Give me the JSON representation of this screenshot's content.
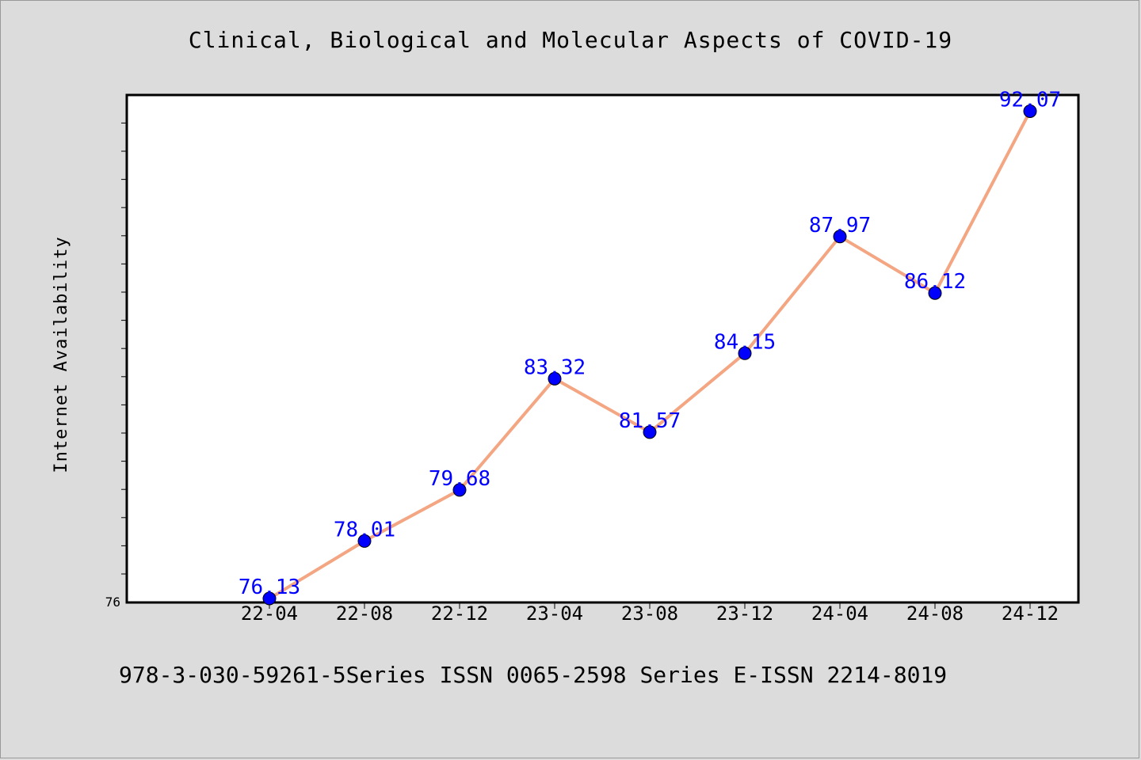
{
  "chart_data": {
    "type": "line",
    "title": "Clinical, Biological and Molecular Aspects of COVID-19",
    "xlabel": "",
    "ylabel": "Internet Availability",
    "categories": [
      "22-04",
      "22-08",
      "22-12",
      "23-04",
      "23-08",
      "23-12",
      "24-04",
      "24-08",
      "24-12"
    ],
    "series": [
      {
        "values": [
          76.13,
          78.01,
          79.68,
          83.32,
          81.57,
          84.15,
          87.97,
          86.12,
          92.07
        ]
      }
    ],
    "ylim": [
      76,
      92.6
    ],
    "ytick_labels": [
      "76"
    ],
    "grid": false,
    "legend": "none",
    "colors": {
      "line": "#f4a582",
      "marker": "#0000ff",
      "label": "#0000ff",
      "background": "#dcdcdc",
      "plot_bg": "#ffffff"
    }
  },
  "footer": "978-3-030-59261-5Series ISSN 0065-2598 Series E-ISSN 2214-8019"
}
